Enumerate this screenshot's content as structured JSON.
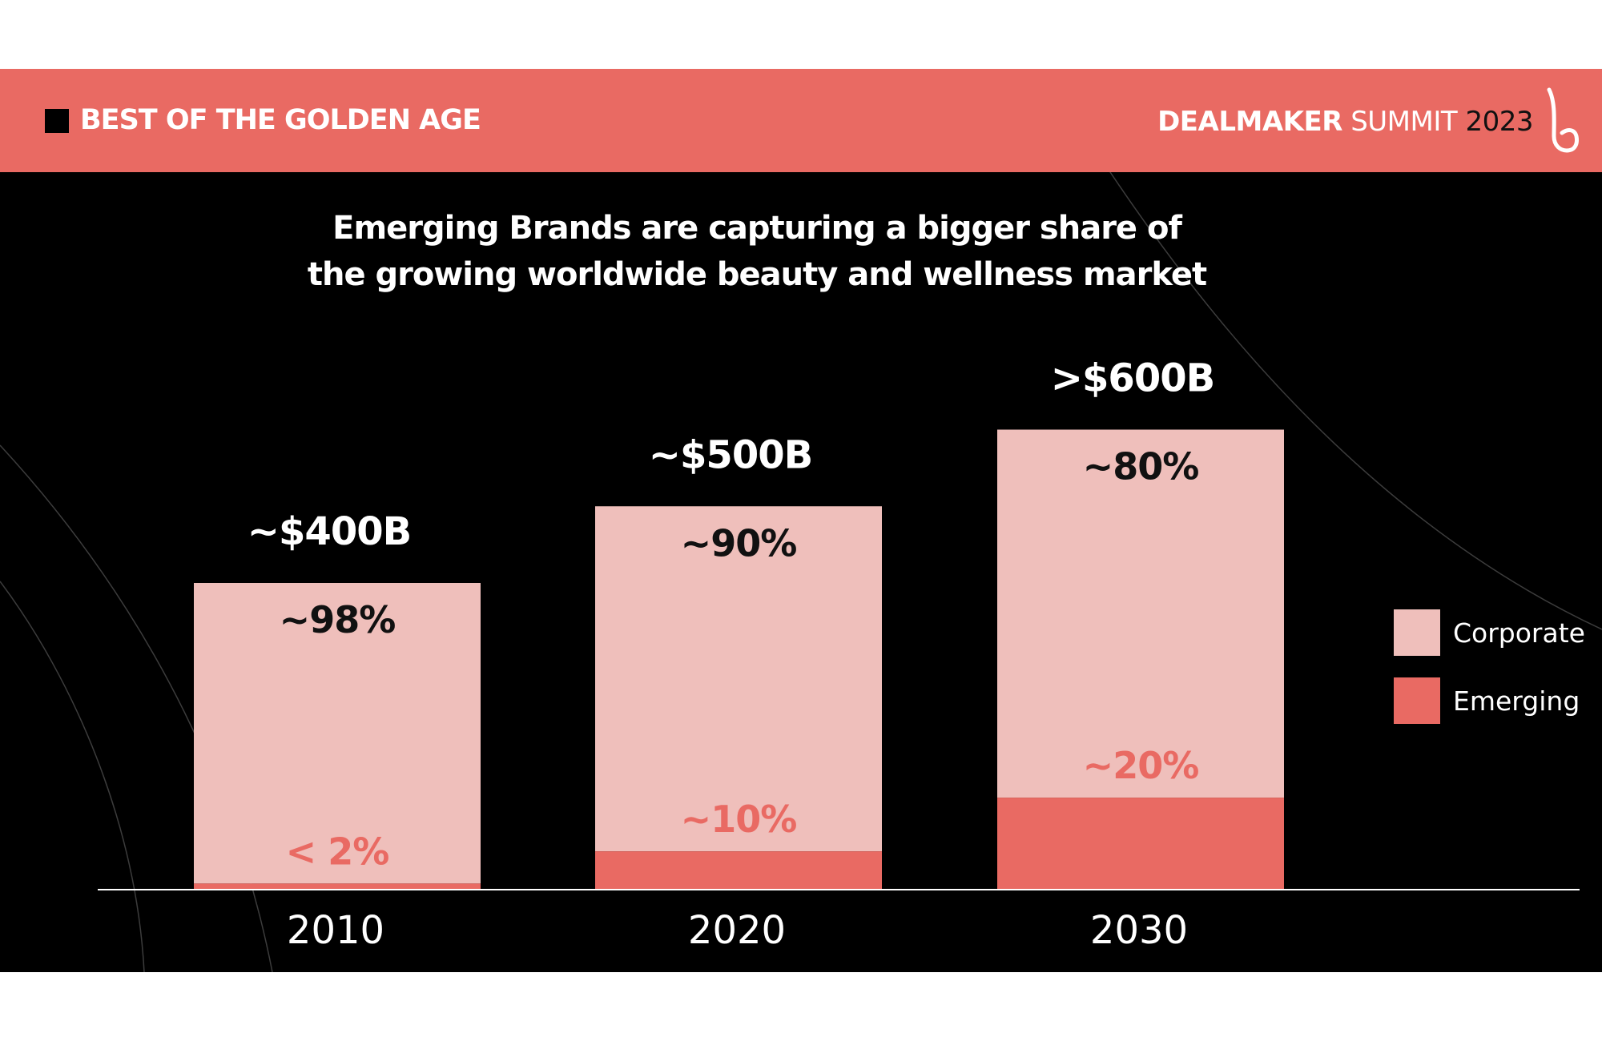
{
  "header": {
    "title": "BEST OF THE GOLDEN AGE",
    "brand_bold": "DEALMAKER",
    "brand_light": "SUMMIT",
    "brand_year": "2023",
    "logo_icon": "b-script-logo-icon"
  },
  "headline": {
    "line1": "Emerging Brands are capturing a bigger share of",
    "line2": "the growing worldwide beauty and wellness market"
  },
  "colors": {
    "header_bg": "#e96a63",
    "background": "#000000",
    "corporate": "#efbfbb",
    "emerging": "#e96a63",
    "text_light": "#ffffff",
    "text_dark": "#111111"
  },
  "chart_data": {
    "type": "bar",
    "stacked": true,
    "categories": [
      "2010",
      "2020",
      "2030"
    ],
    "totals": [
      400,
      500,
      600
    ],
    "total_labels": [
      "~$400B",
      "~$500B",
      ">$600B"
    ],
    "series": [
      {
        "name": "Emerging",
        "share_percent": [
          2,
          10,
          20
        ],
        "labels": [
          "< 2%",
          "~10%",
          "~20%"
        ]
      },
      {
        "name": "Corporate",
        "share_percent": [
          98,
          90,
          80
        ],
        "labels": [
          "~98%",
          "~90%",
          "~80%"
        ]
      }
    ],
    "legend": [
      "Corporate",
      "Emerging"
    ],
    "legend_position": "right",
    "grid": false
  }
}
